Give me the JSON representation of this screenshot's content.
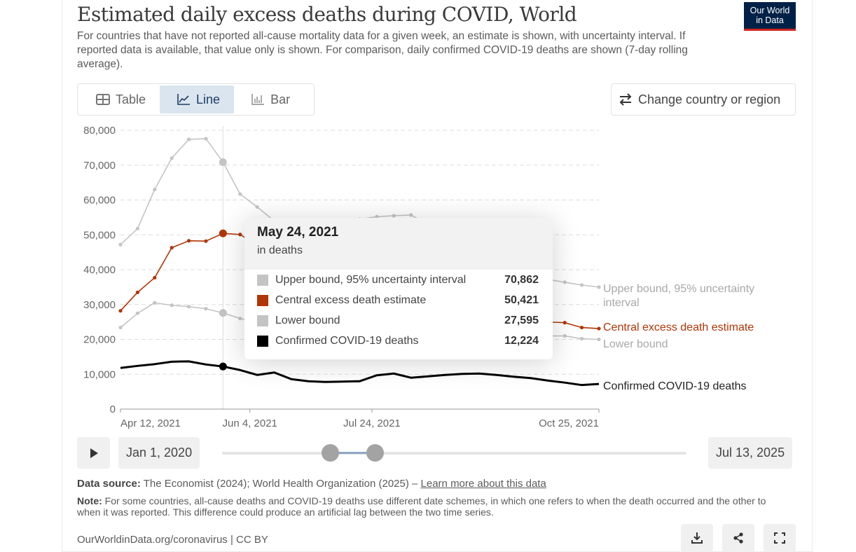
{
  "header": {
    "title": "Estimated daily excess deaths during COVID, World",
    "subtitle": "For countries that have not reported all-cause mortality data for a given week, an estimate is shown, with uncertainty interval. If reported data is available, that value only is shown. For comparison, daily confirmed COVID-19 deaths are shown (7-day rolling average).",
    "logo_line1": "Our World",
    "logo_line2": "in Data"
  },
  "tabs": [
    {
      "label": "Table",
      "icon": "table-icon"
    },
    {
      "label": "Line",
      "icon": "line-chart-icon",
      "active": true
    },
    {
      "label": "Bar",
      "icon": "bar-chart-icon"
    }
  ],
  "change_country_label": "Change country or region",
  "colors": {
    "upper": "#c4c4c4",
    "central": "#b13507",
    "lower": "#c4c4c4",
    "confirmed": "#000000"
  },
  "chart_data": {
    "type": "line",
    "title": "Estimated daily excess deaths during COVID, World",
    "ylim": [
      0,
      80000
    ],
    "yticks": [
      0,
      10000,
      20000,
      30000,
      40000,
      50000,
      60000,
      70000,
      80000
    ],
    "ytick_labels": [
      "0",
      "10,000",
      "20,000",
      "30,000",
      "40,000",
      "50,000",
      "60,000",
      "70,000",
      "80,000"
    ],
    "x_start": "2021-04-12",
    "x_end": "2021-10-25",
    "x_days_total": 196,
    "xticks": [
      {
        "label": "Apr 12, 2021",
        "day": 0
      },
      {
        "label": "Jun 4, 2021",
        "day": 53
      },
      {
        "label": "Jul 24, 2021",
        "day": 103
      },
      {
        "label": "Oct 25, 2021",
        "day": 196
      }
    ],
    "x_interval_days": 7,
    "grid": true,
    "series": [
      {
        "name": "Upper bound, 95% uncertainty interval",
        "key": "upper",
        "markers": true,
        "values": [
          47200,
          51800,
          63000,
          72000,
          77400,
          77600,
          70862,
          61700,
          58000,
          54000,
          52000,
          51500,
          52500,
          53500,
          54500,
          55200,
          55500,
          55700,
          53000,
          49000,
          45500,
          42500,
          40500,
          39000,
          38000,
          37200,
          36400,
          35600,
          35000
        ]
      },
      {
        "name": "Central excess death estimate",
        "key": "central",
        "markers": true,
        "values": [
          28200,
          33500,
          37700,
          46300,
          48300,
          48200,
          50421,
          50100,
          47000,
          43000,
          40000,
          38500,
          37500,
          37000,
          36500,
          36000,
          35000,
          34000,
          32500,
          31000,
          29500,
          28200,
          27000,
          26000,
          25300,
          25000,
          24800,
          23400,
          23100
        ]
      },
      {
        "name": "Lower bound",
        "key": "lower",
        "markers": true,
        "values": [
          23400,
          27500,
          30500,
          29800,
          29400,
          28800,
          27595,
          26000,
          25000,
          24200,
          23800,
          23500,
          23300,
          23200,
          23000,
          22800,
          22600,
          22400,
          22200,
          22000,
          21800,
          21600,
          21400,
          21200,
          21000,
          21000,
          21000,
          20200,
          20000
        ]
      },
      {
        "name": "Confirmed COVID-19 deaths",
        "key": "confirmed",
        "markers": false,
        "values": [
          11800,
          12400,
          12900,
          13600,
          13700,
          12800,
          12224,
          11200,
          9800,
          10500,
          8600,
          8000,
          7800,
          7900,
          8000,
          9700,
          10200,
          9000,
          9400,
          9800,
          10100,
          10200,
          9800,
          9300,
          8900,
          8200,
          7600,
          6900,
          7200
        ]
      }
    ],
    "end_labels": {
      "upper_line1": "Upper bound, 95% uncertainty",
      "upper_line2": "interval",
      "central": "Central excess death estimate",
      "lower": "Lower bound",
      "confirmed": "Confirmed COVID-19 deaths"
    },
    "hover_day": 42
  },
  "tooltip": {
    "date": "May 24, 2021",
    "unit": "in deaths",
    "rows": [
      {
        "name": "Upper bound, 95% uncertainty interval",
        "value": "70,862",
        "color": "#c4c4c4"
      },
      {
        "name": "Central excess death estimate",
        "value": "50,421",
        "color": "#b13507"
      },
      {
        "name": "Lower bound",
        "value": "27,595",
        "color": "#c4c4c4"
      },
      {
        "name": "Confirmed COVID-19 deaths",
        "value": "12,224",
        "color": "#000000"
      }
    ]
  },
  "timeline": {
    "start_label": "Jan 1, 2020",
    "end_label": "Jul 13, 2025"
  },
  "footer": {
    "source_label": "Data source:",
    "source_text": " The Economist (2024); World Health Organization (2025) – ",
    "learn_more": "Learn more about this data",
    "note_label": "Note:",
    "note_text": " For some countries, all-cause deaths and COVID-19 deaths use different date schemes, in which one refers to when the death occurred and the other to when it was reported. This difference could produce an artificial lag between the two time series.",
    "url": "OurWorldinData.org/coronavirus | CC BY"
  }
}
